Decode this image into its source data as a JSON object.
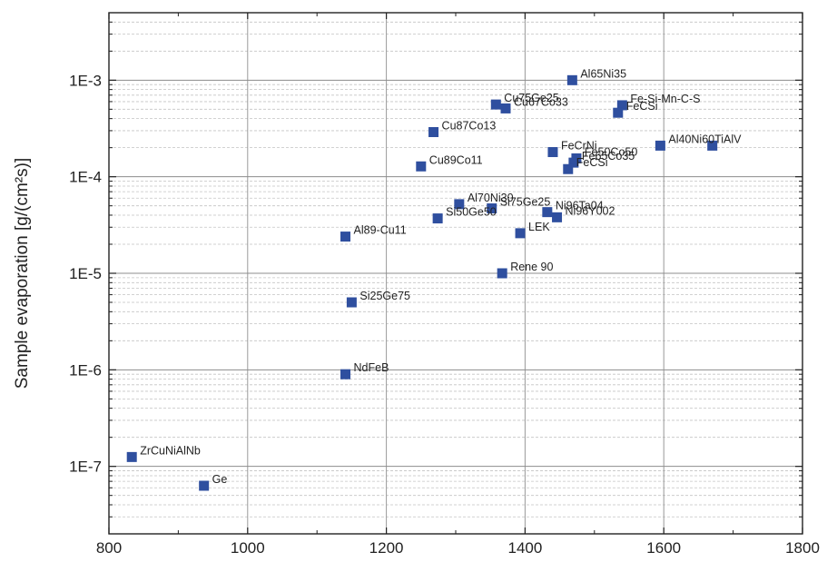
{
  "chart_data": {
    "type": "scatter",
    "title": "",
    "xlabel": "",
    "ylabel": "Sample evaporation [g/(cm²s)]",
    "xlim": [
      800,
      1800
    ],
    "ylim": [
      2e-08,
      0.005
    ],
    "yscale": "log",
    "x_ticks": [
      800,
      1000,
      1200,
      1400,
      1600,
      1800
    ],
    "x_tick_labels": [
      "800",
      "1000",
      "1200",
      "1400",
      "1600",
      "1800"
    ],
    "y_ticks": [
      1e-07,
      1e-06,
      1e-05,
      0.0001,
      0.001
    ],
    "y_tick_labels": [
      "1E-7",
      "1E-6",
      "1E-5",
      "1E-4",
      "1E-3"
    ],
    "grid": true,
    "marker_color": "#2f4f9f",
    "points": [
      {
        "label": "Al65Ni35",
        "x": 1468,
        "y": 0.001
      },
      {
        "label": "Cu75Ge25",
        "x": 1358,
        "y": 0.00056
      },
      {
        "label": "Cu67Co33",
        "x": 1372,
        "y": 0.00051
      },
      {
        "label": "Fe-Si-Mn-C-S",
        "x": 1540,
        "y": 0.00055
      },
      {
        "label": "FeCSi",
        "x": 1534,
        "y": 0.00046
      },
      {
        "label": "Cu87Co13",
        "x": 1268,
        "y": 0.00029
      },
      {
        "label": "Al40Ni60TiAlV",
        "x": 1595,
        "y": 0.00021
      },
      {
        "label": "",
        "x": 1670,
        "y": 0.00021
      },
      {
        "label": "FeCrNi",
        "x": 1440,
        "y": 0.00018
      },
      {
        "label": "Fe50Co50",
        "x": 1474,
        "y": 0.000155
      },
      {
        "label": "Fe65Co35",
        "x": 1470,
        "y": 0.00014
      },
      {
        "label": "FeCSi",
        "x": 1462,
        "y": 0.00012
      },
      {
        "label": "Cu89Co11",
        "x": 1250,
        "y": 0.000128
      },
      {
        "label": "Al70Ni30",
        "x": 1305,
        "y": 5.2e-05
      },
      {
        "label": "Si75Ge25",
        "x": 1352,
        "y": 4.7e-05
      },
      {
        "label": "Ni96Ta04",
        "x": 1432,
        "y": 4.3e-05
      },
      {
        "label": "Ni96Y002",
        "x": 1446,
        "y": 3.8e-05
      },
      {
        "label": "Si50Ge50",
        "x": 1274,
        "y": 3.7e-05
      },
      {
        "label": "LEK",
        "x": 1393,
        "y": 2.6e-05
      },
      {
        "label": "Al89-Cu11",
        "x": 1141,
        "y": 2.4e-05
      },
      {
        "label": "Rene 90",
        "x": 1367,
        "y": 1e-05
      },
      {
        "label": "Si25Ge75",
        "x": 1150,
        "y": 5e-06
      },
      {
        "label": "NdFeB",
        "x": 1141,
        "y": 9e-07
      },
      {
        "label": "ZrCuNiAlNb",
        "x": 833,
        "y": 1.25e-07
      },
      {
        "label": "Ge",
        "x": 937,
        "y": 6.3e-08
      }
    ]
  }
}
